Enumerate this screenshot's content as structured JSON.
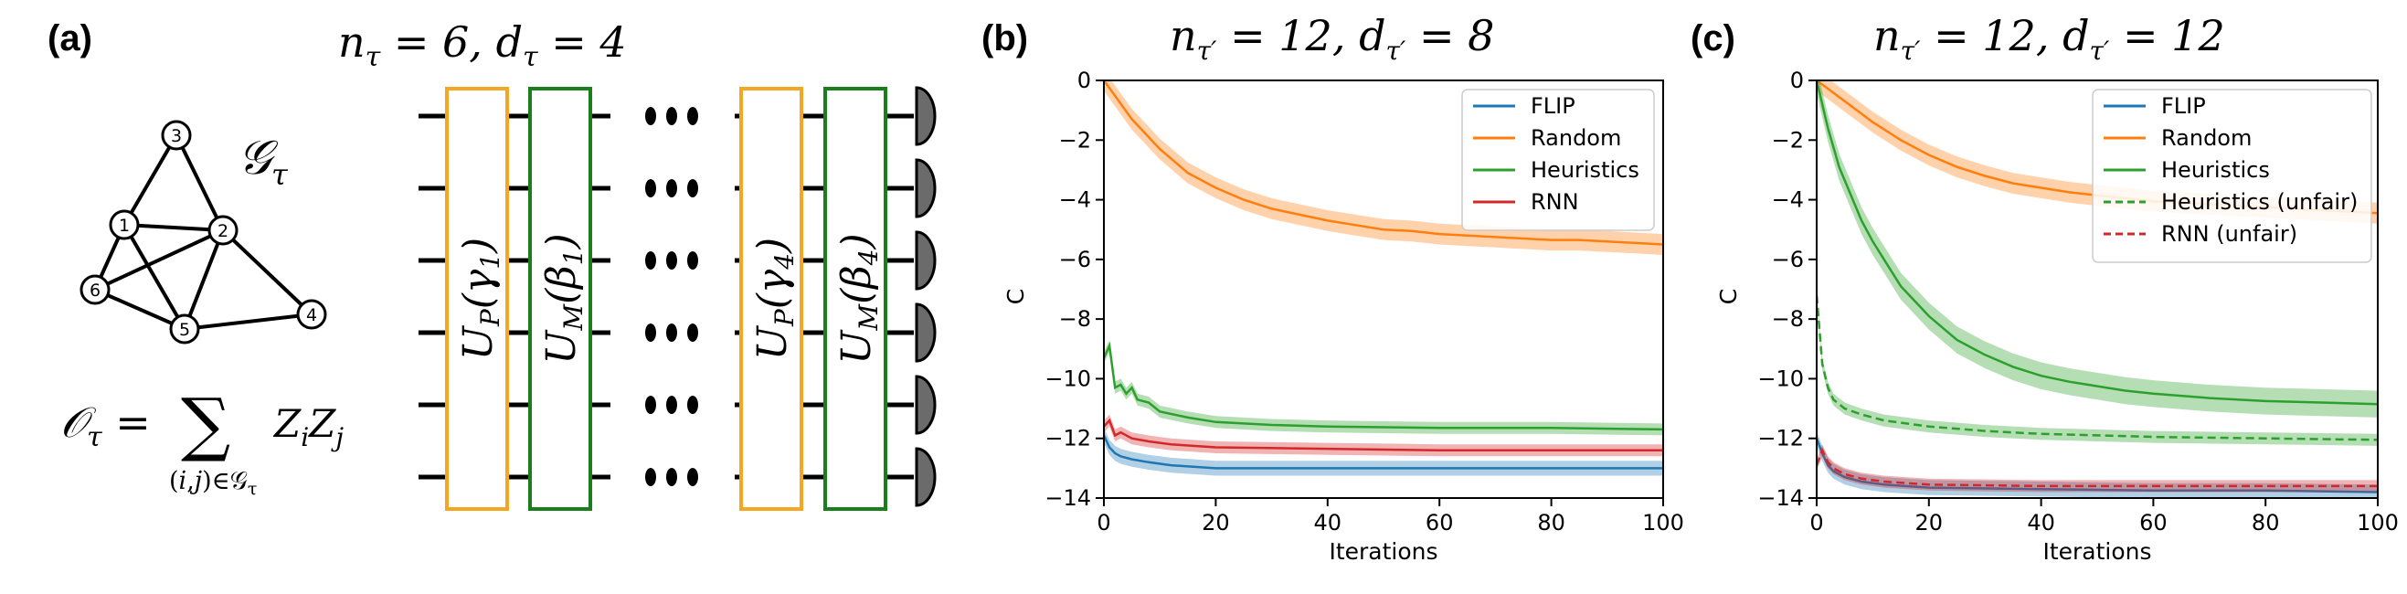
{
  "panel_a": {
    "label": "(a)",
    "circuit_title": "n_τ = 6, d_τ = 4",
    "graph_label": "G_τ",
    "observable_lhs": "O_τ =",
    "observable_sum": "∑",
    "observable_terms": "Z_i Z_j",
    "observable_index": "(i,j)∈G_τ",
    "graph_nodes": [
      "1",
      "2",
      "3",
      "4",
      "5",
      "6"
    ],
    "graph_edges": [
      [
        "1",
        "2"
      ],
      [
        "1",
        "3"
      ],
      [
        "2",
        "3"
      ],
      [
        "1",
        "6"
      ],
      [
        "1",
        "5"
      ],
      [
        "2",
        "5"
      ],
      [
        "2",
        "6"
      ],
      [
        "2",
        "4"
      ],
      [
        "4",
        "5"
      ],
      [
        "5",
        "6"
      ]
    ],
    "gates": [
      "U_P(γ_1)",
      "U_M(β_1)",
      "U_P(γ_4)",
      "U_M(β_4)"
    ],
    "colors": {
      "cost_gate": "#f5a623",
      "mixer_gate": "#1a7f1a"
    }
  },
  "chart_data": [
    {
      "panel_label": "(b)",
      "type": "line",
      "title": "n_τ' = 12, d_τ' = 8",
      "xlabel": "Iterations",
      "ylabel": "C",
      "xlim": [
        0,
        100
      ],
      "ylim": [
        -14,
        0
      ],
      "xticks": [
        0,
        20,
        40,
        60,
        80,
        100
      ],
      "yticks": [
        0,
        -2,
        -4,
        -6,
        -8,
        -10,
        -12,
        -14
      ],
      "legend_position": "top-right",
      "series": [
        {
          "name": "FLIP",
          "color": "#1f77b4",
          "dash": false,
          "x": [
            0,
            1,
            2,
            3,
            5,
            8,
            12,
            20,
            40,
            60,
            80,
            100
          ],
          "y": [
            -11.9,
            -12.3,
            -12.5,
            -12.6,
            -12.7,
            -12.8,
            -12.9,
            -13.0,
            -13.0,
            -13.0,
            -13.0,
            -13.0
          ],
          "band": 0.25
        },
        {
          "name": "Random",
          "color": "#ff7f0e",
          "dash": false,
          "x": [
            0,
            5,
            10,
            15,
            20,
            25,
            30,
            35,
            40,
            45,
            50,
            55,
            60,
            65,
            70,
            75,
            80,
            85,
            90,
            95,
            100
          ],
          "y": [
            0,
            -1.3,
            -2.3,
            -3.1,
            -3.6,
            -4.0,
            -4.3,
            -4.5,
            -4.7,
            -4.85,
            -5.0,
            -5.05,
            -5.15,
            -5.2,
            -5.25,
            -5.3,
            -5.35,
            -5.35,
            -5.4,
            -5.45,
            -5.5
          ],
          "band": 0.35
        },
        {
          "name": "Heuristics",
          "color": "#2ca02c",
          "dash": false,
          "x": [
            0,
            1,
            2,
            3,
            4,
            5,
            6,
            8,
            10,
            15,
            20,
            30,
            40,
            60,
            80,
            100
          ],
          "y": [
            -9.3,
            -8.9,
            -10.3,
            -10.2,
            -10.5,
            -10.3,
            -10.7,
            -10.8,
            -11.1,
            -11.3,
            -11.45,
            -11.55,
            -11.6,
            -11.65,
            -11.65,
            -11.7
          ],
          "band": 0.2
        },
        {
          "name": "RNN",
          "color": "#d62728",
          "dash": false,
          "x": [
            0,
            1,
            2,
            3,
            5,
            8,
            12,
            20,
            40,
            60,
            80,
            100
          ],
          "y": [
            -11.6,
            -11.4,
            -11.9,
            -11.8,
            -12.0,
            -12.1,
            -12.2,
            -12.3,
            -12.35,
            -12.4,
            -12.4,
            -12.4
          ],
          "band": 0.2
        }
      ]
    },
    {
      "panel_label": "(c)",
      "type": "line",
      "title": "n_τ' = 12, d_τ' = 12",
      "xlabel": "Iterations",
      "ylabel": "C",
      "xlim": [
        0,
        100
      ],
      "ylim": [
        -14,
        0
      ],
      "xticks": [
        0,
        20,
        40,
        60,
        80,
        100
      ],
      "yticks": [
        0,
        -2,
        -4,
        -6,
        -8,
        -10,
        -12,
        -14
      ],
      "legend_position": "top-right",
      "series": [
        {
          "name": "FLIP",
          "color": "#1f77b4",
          "dash": false,
          "x": [
            0,
            1,
            2,
            3,
            5,
            8,
            12,
            20,
            40,
            60,
            80,
            100
          ],
          "y": [
            -12.0,
            -12.5,
            -12.9,
            -13.1,
            -13.3,
            -13.45,
            -13.55,
            -13.65,
            -13.7,
            -13.75,
            -13.75,
            -13.8
          ],
          "band": 0.25
        },
        {
          "name": "Random",
          "color": "#ff7f0e",
          "dash": false,
          "x": [
            0,
            5,
            10,
            15,
            20,
            25,
            30,
            35,
            40,
            45,
            50,
            55,
            60,
            65,
            70,
            75,
            80,
            85,
            90,
            95,
            100
          ],
          "y": [
            0,
            -0.7,
            -1.4,
            -2.0,
            -2.5,
            -2.9,
            -3.2,
            -3.45,
            -3.6,
            -3.75,
            -3.85,
            -3.95,
            -4.05,
            -4.1,
            -4.15,
            -4.2,
            -4.25,
            -4.3,
            -4.35,
            -4.4,
            -4.45
          ],
          "band": 0.35
        },
        {
          "name": "Heuristics",
          "color": "#2ca02c",
          "dash": false,
          "x": [
            0,
            2,
            4,
            6,
            8,
            10,
            12,
            15,
            20,
            25,
            30,
            35,
            40,
            45,
            50,
            55,
            60,
            70,
            80,
            90,
            100
          ],
          "y": [
            0,
            -1.6,
            -2.9,
            -3.8,
            -4.7,
            -5.4,
            -6.0,
            -6.9,
            -7.9,
            -8.7,
            -9.2,
            -9.6,
            -9.9,
            -10.1,
            -10.25,
            -10.4,
            -10.5,
            -10.65,
            -10.75,
            -10.8,
            -10.85
          ],
          "band": 0.45
        },
        {
          "name": "Heuristics (unfair)",
          "color": "#2ca02c",
          "dash": true,
          "x": [
            0,
            1,
            2,
            3,
            5,
            8,
            12,
            20,
            30,
            40,
            60,
            80,
            100
          ],
          "y": [
            -7.2,
            -9.5,
            -10.3,
            -10.7,
            -11.0,
            -11.2,
            -11.4,
            -11.6,
            -11.75,
            -11.85,
            -11.95,
            -12.0,
            -12.05
          ],
          "band": 0.2
        },
        {
          "name": "RNN (unfair)",
          "color": "#d62728",
          "dash": true,
          "x": [
            0,
            1,
            2,
            3,
            5,
            8,
            12,
            20,
            40,
            60,
            80,
            100
          ],
          "y": [
            -12.9,
            -12.4,
            -12.8,
            -13.0,
            -13.2,
            -13.35,
            -13.45,
            -13.55,
            -13.6,
            -13.6,
            -13.6,
            -13.6
          ],
          "band": 0.2
        }
      ]
    }
  ]
}
